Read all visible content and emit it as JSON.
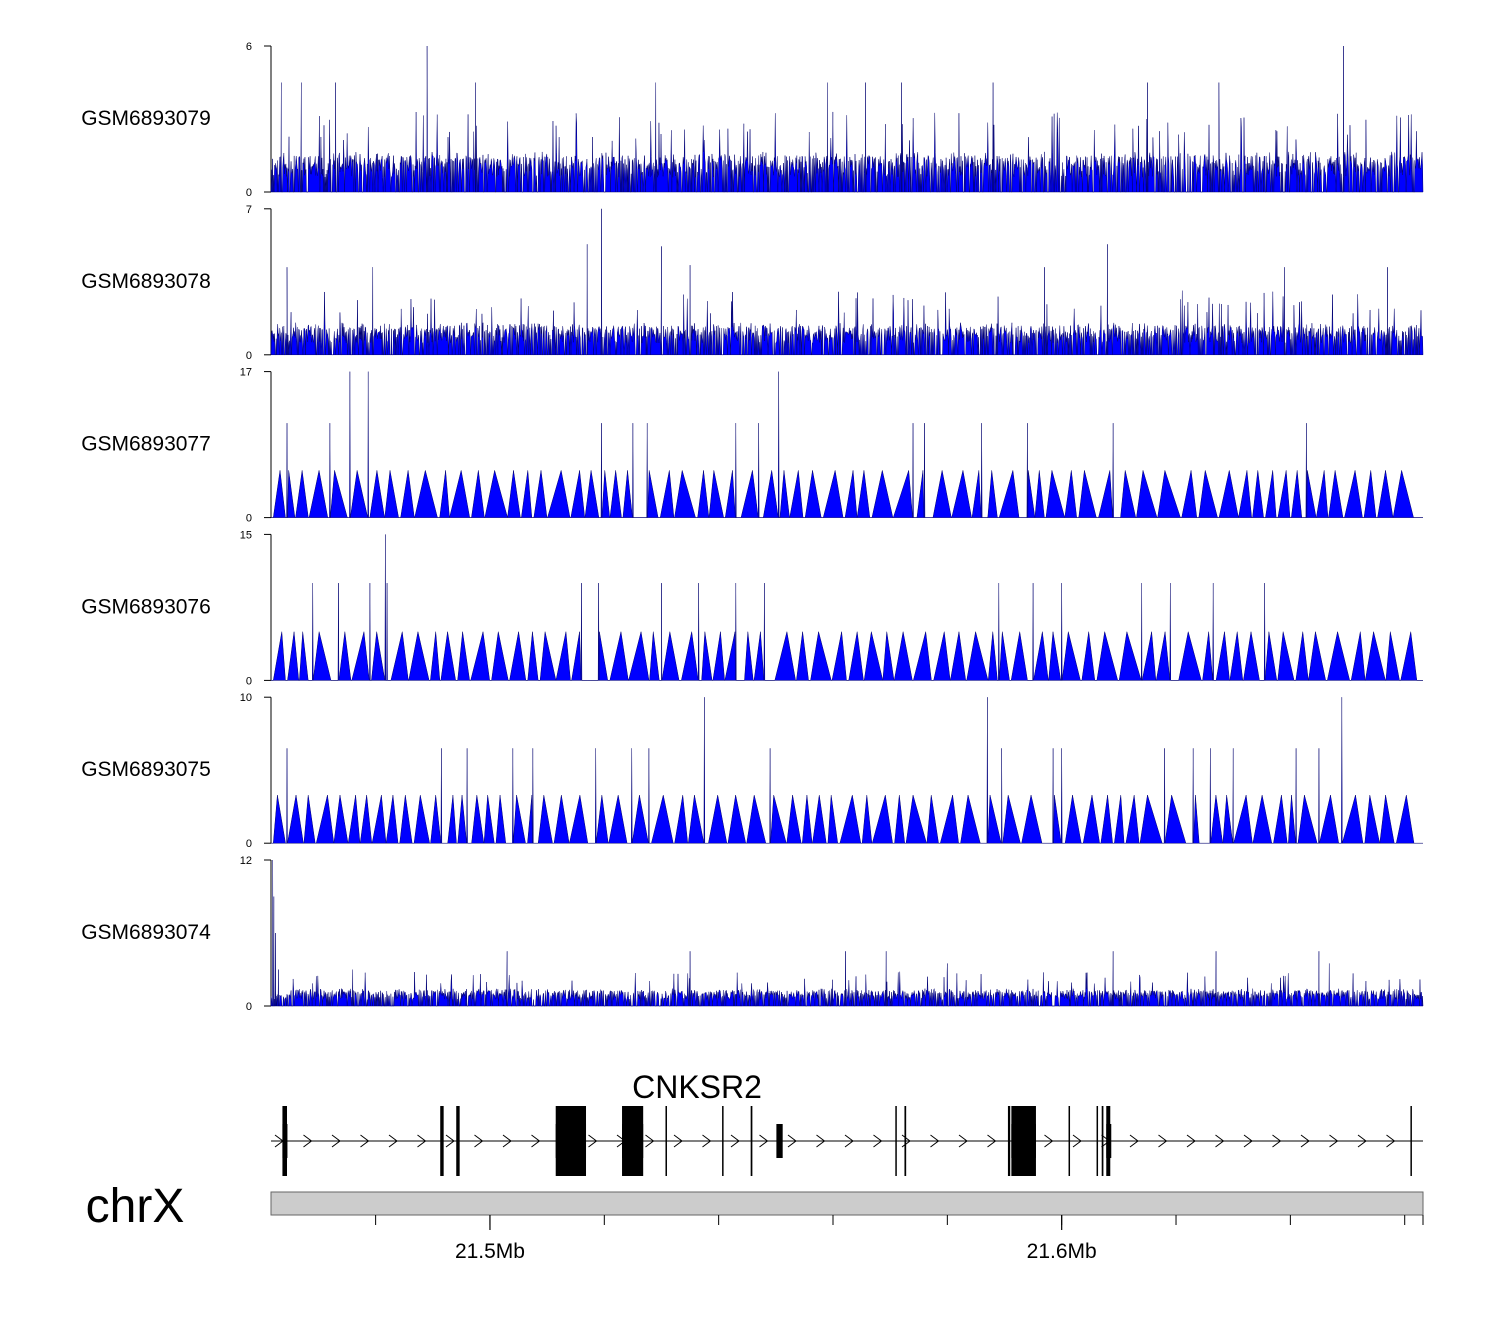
{
  "chart_data": {
    "type": "area",
    "chromosome": "chrX",
    "x_range_mb": [
      21.4617,
      21.6632
    ],
    "color": "#0000ff",
    "tracks": [
      {
        "name": "GSM6893079",
        "ylim": [
          0,
          6
        ],
        "y_ticks": [
          "0",
          "6"
        ],
        "baseline": 1.5,
        "peak_max": 6,
        "pattern": "dense",
        "seed": 11,
        "peaks": [
          [
            21.4635,
            4.5
          ],
          [
            21.467,
            4.5
          ],
          [
            21.473,
            4.5
          ],
          [
            21.489,
            6
          ],
          [
            21.4975,
            4.5
          ],
          [
            21.529,
            4.5
          ],
          [
            21.559,
            4.5
          ],
          [
            21.5657,
            4.5
          ],
          [
            21.572,
            4.5
          ],
          [
            21.588,
            4.5
          ],
          [
            21.615,
            4.5
          ],
          [
            21.6275,
            4.5
          ],
          [
            21.6493,
            6
          ]
        ]
      },
      {
        "name": "GSM6893078",
        "ylim": [
          0,
          7
        ],
        "y_ticks": [
          "0",
          "7"
        ],
        "baseline": 1.4,
        "peak_max": 7,
        "pattern": "dense",
        "seed": 23,
        "peaks": [
          [
            21.4645,
            4.2
          ],
          [
            21.4795,
            4.2
          ],
          [
            21.517,
            5.3
          ],
          [
            21.5195,
            7
          ],
          [
            21.53,
            5.2
          ],
          [
            21.535,
            4.3
          ],
          [
            21.597,
            4.2
          ],
          [
            21.608,
            5.3
          ],
          [
            21.639,
            4.2
          ],
          [
            21.657,
            4.2
          ]
        ]
      },
      {
        "name": "GSM6893077",
        "ylim": [
          0,
          17
        ],
        "y_ticks": [
          "0",
          "17"
        ],
        "baseline": 5.5,
        "peak_max": 17,
        "pattern": "sparse",
        "seed": 37,
        "peaks": [
          [
            21.4645,
            11
          ],
          [
            21.472,
            11
          ],
          [
            21.4755,
            17
          ],
          [
            21.4787,
            17
          ],
          [
            21.5195,
            11
          ],
          [
            21.525,
            11
          ],
          [
            21.5275,
            11
          ],
          [
            21.543,
            11
          ],
          [
            21.547,
            11
          ],
          [
            21.5505,
            17
          ],
          [
            21.574,
            11
          ],
          [
            21.576,
            11
          ],
          [
            21.586,
            11
          ],
          [
            21.594,
            11
          ],
          [
            21.609,
            11
          ],
          [
            21.6428,
            11
          ]
        ]
      },
      {
        "name": "GSM6893076",
        "ylim": [
          0,
          15
        ],
        "y_ticks": [
          "0",
          "15"
        ],
        "baseline": 5,
        "peak_max": 15,
        "pattern": "sparse",
        "seed": 41,
        "peaks": [
          [
            21.469,
            10
          ],
          [
            21.4735,
            10
          ],
          [
            21.479,
            10
          ],
          [
            21.4817,
            15
          ],
          [
            21.482,
            10
          ],
          [
            21.516,
            10
          ],
          [
            21.519,
            10
          ],
          [
            21.53,
            10
          ],
          [
            21.5365,
            10
          ],
          [
            21.543,
            10
          ],
          [
            21.548,
            10
          ],
          [
            21.589,
            10
          ],
          [
            21.595,
            10
          ],
          [
            21.6,
            10
          ],
          [
            21.614,
            10
          ],
          [
            21.619,
            10
          ],
          [
            21.6265,
            10
          ],
          [
            21.6355,
            10
          ]
        ]
      },
      {
        "name": "GSM6893075",
        "ylim": [
          0,
          10
        ],
        "y_ticks": [
          "0",
          "10"
        ],
        "baseline": 3.3,
        "peak_max": 10,
        "pattern": "sparse",
        "seed": 53,
        "peaks": [
          [
            21.4645,
            6.5
          ],
          [
            21.4915,
            6.5
          ],
          [
            21.496,
            6.5
          ],
          [
            21.504,
            6.5
          ],
          [
            21.5075,
            6.5
          ],
          [
            21.5185,
            6.5
          ],
          [
            21.5248,
            6.5
          ],
          [
            21.5278,
            6.5
          ],
          [
            21.5375,
            10
          ],
          [
            21.549,
            6.5
          ],
          [
            21.587,
            10
          ],
          [
            21.5895,
            6.5
          ],
          [
            21.5985,
            6.5
          ],
          [
            21.6,
            6.5
          ],
          [
            21.618,
            6.5
          ],
          [
            21.623,
            6.5
          ],
          [
            21.626,
            6.5
          ],
          [
            21.63,
            6.5
          ],
          [
            21.641,
            6.5
          ],
          [
            21.645,
            6.5
          ],
          [
            21.649,
            10
          ]
        ]
      },
      {
        "name": "GSM6893074",
        "ylim": [
          0,
          12
        ],
        "y_ticks": [
          "0",
          "12"
        ],
        "baseline": 1.3,
        "peak_max": 12,
        "pattern": "dense",
        "seed": 67,
        "peaks": [
          [
            21.462,
            12
          ],
          [
            21.4622,
            9
          ],
          [
            21.4625,
            6
          ],
          [
            21.463,
            3
          ],
          [
            21.476,
            3
          ],
          [
            21.503,
            4.5
          ],
          [
            21.535,
            4.5
          ],
          [
            21.5622,
            4.5
          ],
          [
            21.5693,
            4.5
          ],
          [
            21.58,
            3.5
          ],
          [
            21.609,
            4.5
          ],
          [
            21.627,
            4.5
          ],
          [
            21.645,
            4.5
          ],
          [
            21.6468,
            3.5
          ]
        ]
      }
    ],
    "gene": {
      "name": "CNKSR2",
      "strand": "+",
      "start_mb": 21.4617,
      "end_mb": 21.6632,
      "exons": [
        [
          21.4637,
          21.4645
        ],
        [
          21.4913,
          21.4919
        ],
        [
          21.4941,
          21.4947
        ],
        [
          21.5115,
          21.5168
        ],
        [
          21.5195,
          21.5197
        ],
        [
          21.5231,
          21.5268
        ],
        [
          21.5307,
          21.5309
        ],
        [
          21.5406,
          21.5408
        ],
        [
          21.5456,
          21.5459
        ],
        [
          21.5501,
          21.5512
        ],
        [
          21.5709,
          21.5711
        ],
        [
          21.5725,
          21.5728
        ],
        [
          21.5906,
          21.591
        ],
        [
          21.5912,
          21.5955
        ],
        [
          21.6012,
          21.6014
        ],
        [
          21.6061,
          21.6063
        ],
        [
          21.607,
          21.6073
        ],
        [
          21.6078,
          21.6085
        ],
        [
          21.661,
          21.6612
        ]
      ],
      "tall_exons": [
        [
          21.4637,
          21.4645
        ],
        [
          21.4913,
          21.4919
        ],
        [
          21.4941,
          21.4947
        ],
        [
          21.5115,
          21.5168
        ],
        [
          21.5231,
          21.5268
        ],
        [
          21.5307,
          21.5309
        ],
        [
          21.5406,
          21.5408
        ],
        [
          21.5456,
          21.5459
        ],
        [
          21.5709,
          21.5711
        ],
        [
          21.5725,
          21.5728
        ],
        [
          21.5906,
          21.591
        ],
        [
          21.5912,
          21.5955
        ],
        [
          21.6012,
          21.6014
        ],
        [
          21.6061,
          21.6063
        ],
        [
          21.607,
          21.6073
        ],
        [
          21.6078,
          21.6085
        ],
        [
          21.661,
          21.6612
        ]
      ],
      "thick_blocks": [
        [
          21.4637,
          21.4645
        ],
        [
          21.5115,
          21.5168
        ],
        [
          21.5231,
          21.5268
        ],
        [
          21.5501,
          21.5512
        ],
        [
          21.5912,
          21.5955
        ],
        [
          21.6078,
          21.6085
        ]
      ]
    },
    "axis": {
      "ticks_mb": [
        21.5,
        21.6
      ],
      "tick_labels": [
        "21.5Mb",
        "21.6Mb"
      ],
      "minor_step_mb": 0.02
    }
  }
}
